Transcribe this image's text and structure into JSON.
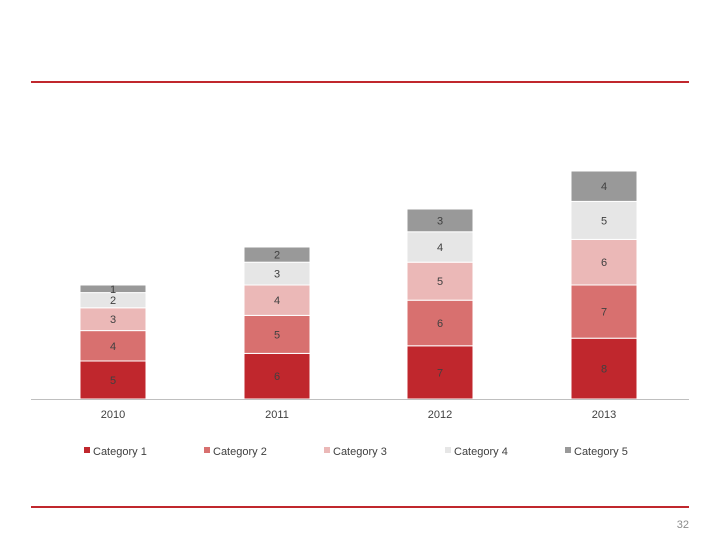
{
  "slide": {
    "page_number": "32",
    "rule_color": "#c0272d"
  },
  "chart_data": {
    "type": "bar",
    "stacked": true,
    "title": "",
    "xlabel": "",
    "ylabel": "",
    "ylim": [
      0,
      30
    ],
    "grid": false,
    "legend_position": "bottom",
    "categories": [
      "2010",
      "2011",
      "2012",
      "2013"
    ],
    "series": [
      {
        "name": "Category 1",
        "color": "#c0272d",
        "values": [
          5,
          6,
          7,
          8
        ]
      },
      {
        "name": "Category 2",
        "color": "#d8706f",
        "values": [
          4,
          5,
          6,
          7
        ]
      },
      {
        "name": "Category 3",
        "color": "#ebb8b7",
        "values": [
          3,
          4,
          5,
          6
        ]
      },
      {
        "name": "Category 4",
        "color": "#e6e6e6",
        "values": [
          2,
          3,
          4,
          5
        ]
      },
      {
        "name": "Category 5",
        "color": "#999999",
        "values": [
          1,
          2,
          3,
          4
        ]
      }
    ]
  }
}
